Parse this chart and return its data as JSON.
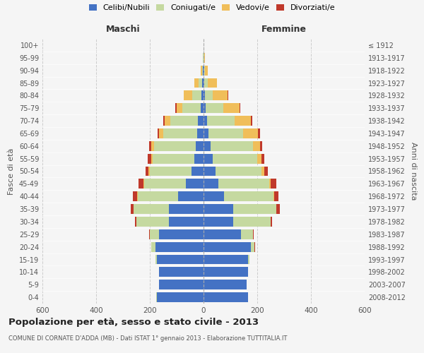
{
  "age_groups": [
    "0-4",
    "5-9",
    "10-14",
    "15-19",
    "20-24",
    "25-29",
    "30-34",
    "35-39",
    "40-44",
    "45-49",
    "50-54",
    "55-59",
    "60-64",
    "65-69",
    "70-74",
    "75-79",
    "80-84",
    "85-89",
    "90-94",
    "95-99",
    "100+"
  ],
  "birth_years": [
    "2008-2012",
    "2003-2007",
    "1998-2002",
    "1993-1997",
    "1988-1992",
    "1983-1987",
    "1978-1982",
    "1973-1977",
    "1968-1972",
    "1963-1967",
    "1958-1962",
    "1953-1957",
    "1948-1952",
    "1943-1947",
    "1938-1942",
    "1933-1937",
    "1928-1932",
    "1923-1927",
    "1918-1922",
    "1913-1917",
    "≤ 1912"
  ],
  "male_celibi": [
    175,
    165,
    165,
    175,
    180,
    165,
    130,
    130,
    95,
    65,
    45,
    35,
    30,
    25,
    20,
    10,
    8,
    4,
    2,
    1,
    1
  ],
  "male_coniugati": [
    1,
    1,
    2,
    5,
    15,
    35,
    120,
    130,
    150,
    155,
    155,
    155,
    155,
    125,
    105,
    70,
    35,
    15,
    4,
    1,
    0
  ],
  "male_vedovi": [
    0,
    0,
    0,
    0,
    0,
    0,
    1,
    1,
    2,
    3,
    5,
    5,
    10,
    15,
    20,
    20,
    30,
    15,
    5,
    1,
    0
  ],
  "male_divorziati": [
    0,
    0,
    0,
    0,
    1,
    2,
    5,
    10,
    15,
    20,
    10,
    12,
    8,
    5,
    5,
    5,
    0,
    0,
    0,
    0,
    0
  ],
  "female_celibi": [
    165,
    160,
    165,
    165,
    175,
    140,
    110,
    110,
    75,
    55,
    45,
    35,
    25,
    18,
    12,
    8,
    5,
    3,
    2,
    1,
    0
  ],
  "female_coniugati": [
    1,
    1,
    2,
    5,
    15,
    45,
    140,
    160,
    185,
    190,
    170,
    165,
    160,
    130,
    105,
    65,
    30,
    12,
    4,
    1,
    0
  ],
  "female_vedovi": [
    0,
    0,
    0,
    0,
    0,
    0,
    1,
    2,
    3,
    5,
    10,
    15,
    25,
    55,
    60,
    60,
    55,
    35,
    10,
    2,
    1
  ],
  "female_divorziati": [
    0,
    0,
    0,
    0,
    1,
    2,
    5,
    12,
    15,
    20,
    15,
    12,
    8,
    8,
    5,
    5,
    2,
    0,
    0,
    0,
    0
  ],
  "colors": {
    "celibi": "#4472c4",
    "coniugati": "#c5d9a0",
    "vedovi": "#f0be5a",
    "divorziati": "#c0392b"
  },
  "title": "Popolazione per età, sesso e stato civile - 2013",
  "subtitle": "COMUNE DI CORNATE D'ADDA (MB) - Dati ISTAT 1° gennaio 2013 - Elaborazione TUTTITALIA.IT",
  "xlabel_left": "Maschi",
  "xlabel_right": "Femmine",
  "ylabel_left": "Fasce di età",
  "ylabel_right": "Anni di nascita",
  "legend_labels": [
    "Celibi/Nubili",
    "Coniugati/e",
    "Vedovi/e",
    "Divorziati/e"
  ],
  "xlim": 600,
  "background_color": "#f5f5f5",
  "grid_color": "#cccccc"
}
